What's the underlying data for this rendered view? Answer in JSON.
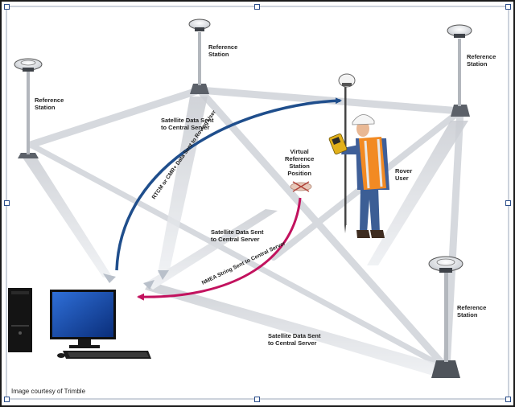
{
  "stations": [
    {
      "line1": "Reference",
      "line2": "Station"
    },
    {
      "line1": "Reference",
      "line2": "Station"
    },
    {
      "line1": "Reference",
      "line2": "Station"
    },
    {
      "line1": "Reference",
      "line2": "Station"
    }
  ],
  "vrs": {
    "line1": "Virtual",
    "line2": "Reference",
    "line3": "Station",
    "line4": "Position"
  },
  "rover": {
    "line1": "Rover",
    "line2": "User"
  },
  "sat_top": {
    "line1": "Satellite Data Sent",
    "line2": "to Central Server"
  },
  "sat_mid": {
    "line1": "Satellite Data Sent",
    "line2": "to Central Server"
  },
  "sat_bot": {
    "line1": "Satellite Data Sent",
    "line2": "to Central Server"
  },
  "rtcm_label": "RTCM or CMR+ Data Sent to Roving User",
  "nmea_label": "NMEA String Sent to Central Server",
  "credit": "Image courtesy of Trimble",
  "colors": {
    "rtcm_arrow": "#1f4e8c",
    "nmea_arrow": "#c2125e",
    "beam": "#d5d8de",
    "frame": "#1a1a1a"
  }
}
